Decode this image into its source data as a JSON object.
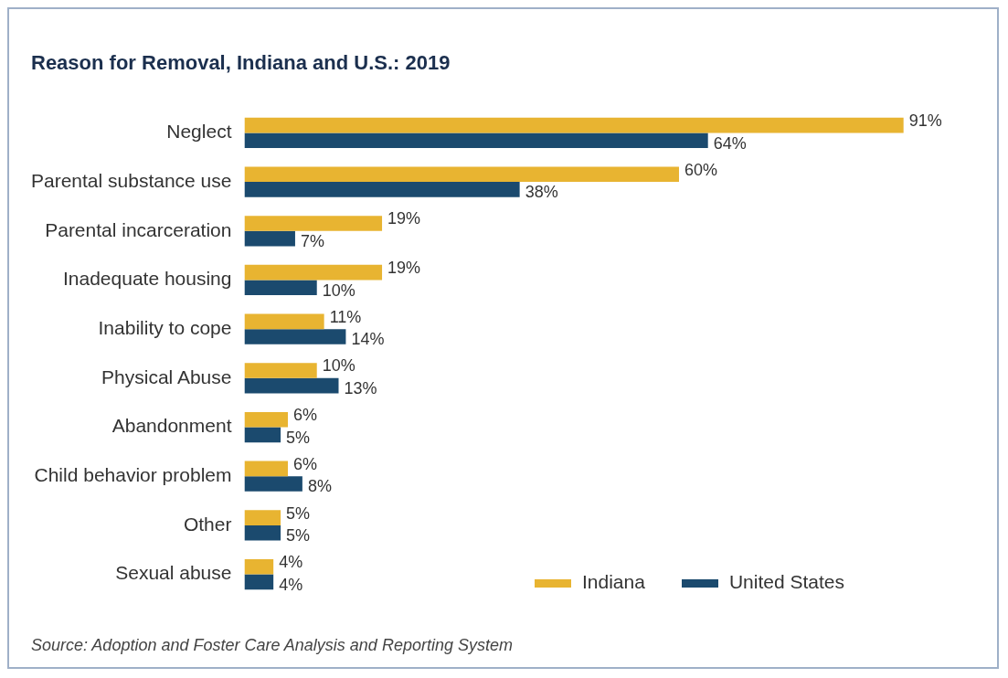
{
  "chart_data": {
    "type": "bar",
    "orientation": "horizontal",
    "title": "Reason for Removal, Indiana and U.S.: 2019",
    "categories": [
      "Neglect",
      "Parental substance use",
      "Parental incarceration",
      "Inadequate housing",
      "Inability to cope",
      "Physical Abuse",
      "Abandonment",
      "Child behavior problem",
      "Other",
      "Sexual abuse"
    ],
    "series": [
      {
        "name": "Indiana",
        "color": "#e8b431",
        "values": [
          91,
          60,
          19,
          19,
          11,
          10,
          6,
          6,
          5,
          4
        ],
        "value_labels": [
          "91%",
          "60%",
          "19%",
          "19%",
          "11%",
          "10%",
          "6%",
          "6%",
          "5%",
          "4%"
        ]
      },
      {
        "name": "United States",
        "color": "#1b4a6e",
        "values": [
          64,
          38,
          7,
          10,
          14,
          13,
          5,
          8,
          5,
          4
        ],
        "value_labels": [
          "64%",
          "38%",
          "7%",
          "10%",
          "14%",
          "13%",
          "5%",
          "8%",
          "5%",
          "4%"
        ]
      }
    ],
    "tick_labels": "y",
    "legend": "bottom right",
    "annotations": [
      "Source: Adoption and Foster Care Analysis and Reporting System"
    ]
  }
}
